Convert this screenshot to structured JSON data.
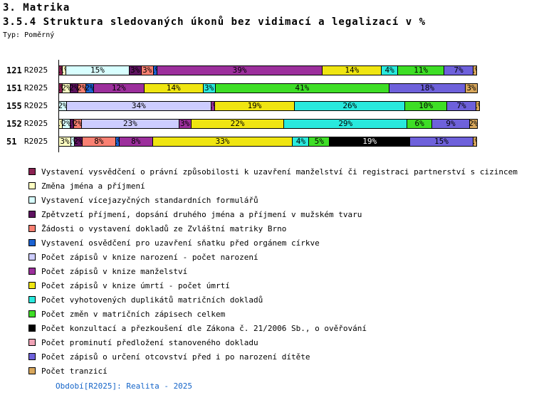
{
  "header": {
    "title": "3. Matrika",
    "subtitle": "3.5.4 Struktura sledovaných úkonů bez vidimací a legalizací v %",
    "type_label": "Typ: Poměrný"
  },
  "footer": {
    "text": "Období[R2025]: Realita - 2025",
    "color": "#1464C8"
  },
  "chart_data": {
    "type": "bar",
    "orientation": "horizontal-stacked",
    "unit": "%",
    "xlim": [
      0,
      100
    ],
    "grid": false,
    "legend_position": "bottom",
    "categories": [
      {
        "id": "121",
        "period": "R2025"
      },
      {
        "id": "151",
        "period": "R2025"
      },
      {
        "id": "155",
        "period": "R2025"
      },
      {
        "id": "152",
        "period": "R2025"
      },
      {
        "id": "51",
        "period": "R2025"
      }
    ],
    "series": [
      {
        "name": "Vystavení vysvědčení o právní způsobilosti k uzavření manželství či registraci partnerství s cizincem",
        "color": "#8B2252",
        "values": [
          1,
          1,
          0,
          0,
          0
        ]
      },
      {
        "name": "Změna jména a příjmení",
        "color": "#FFFFC2",
        "values": [
          1,
          2,
          0,
          1,
          3
        ]
      },
      {
        "name": "Vystavení vícejazyčných standardních formulářů",
        "color": "#D8FFFF",
        "values": [
          15,
          0,
          2,
          2,
          1
        ]
      },
      {
        "name": "Zpětvzetí příjmení, dopsání druhého jména a příjmení v mužském tvaru",
        "color": "#5E1260",
        "values": [
          3,
          2,
          0,
          1,
          2
        ]
      },
      {
        "name": "Žádosti o vystavení dokladů ze Zvláštní matriky Brno",
        "color": "#F98072",
        "values": [
          3,
          2,
          0,
          2,
          8
        ]
      },
      {
        "name": "Vystavení osvědčení pro uzavření sňatku před orgánem církve",
        "color": "#1B62D1",
        "values": [
          1,
          2,
          0,
          0,
          1
        ]
      },
      {
        "name": "Počet zápisů v knize narození - počet narození",
        "color": "#CDCDFF",
        "values": [
          0,
          0,
          34,
          23,
          0
        ]
      },
      {
        "name": "Počet zápisů v knize manželství",
        "color": "#9C2F9C",
        "values": [
          39,
          12,
          1,
          3,
          8
        ]
      },
      {
        "name": "Počet zápisů v knize úmrtí - počet úmrtí",
        "color": "#EFE511",
        "values": [
          14,
          14,
          19,
          22,
          33
        ]
      },
      {
        "name": "Počet vyhotovených duplikátů matričních dokladů",
        "color": "#29E9DD",
        "values": [
          4,
          3,
          26,
          29,
          4
        ]
      },
      {
        "name": "Počet změn v matričních zápisech celkem",
        "color": "#3EDE26",
        "values": [
          11,
          41,
          10,
          6,
          5
        ]
      },
      {
        "name": "Počet  konzultací a přezkoušení dle Zákona č. 21/2006 Sb., o ověřování",
        "color": "#000000",
        "values": [
          0,
          0,
          0,
          0,
          19
        ]
      },
      {
        "name": "Počet prominutí předložení stanoveného dokladu",
        "color": "#F0A3B6",
        "values": [
          0,
          0,
          0,
          0,
          0
        ]
      },
      {
        "name": "Počet zápisů o určení otcovství před i po narození dítěte",
        "color": "#6E61DB",
        "values": [
          7,
          18,
          7,
          9,
          15
        ]
      },
      {
        "name": "Počet tranzicí",
        "color": "#D8A75C",
        "values": [
          1,
          3,
          1,
          2,
          1
        ]
      }
    ]
  }
}
